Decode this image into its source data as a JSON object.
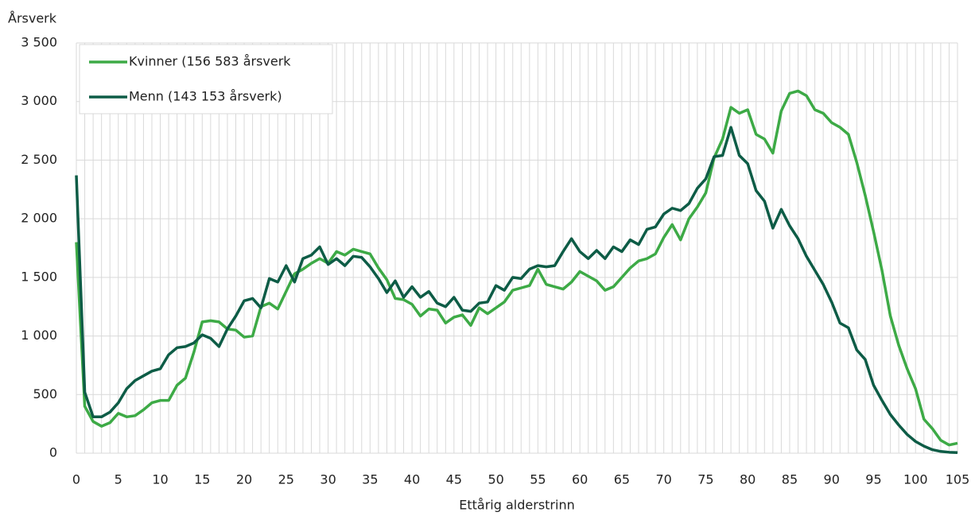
{
  "chart_data": {
    "type": "line",
    "ylabel": "Årsverk",
    "xlabel": "Ettårig alderstrinn",
    "x": [
      0,
      1,
      2,
      3,
      4,
      5,
      6,
      7,
      8,
      9,
      10,
      11,
      12,
      13,
      14,
      15,
      16,
      17,
      18,
      19,
      20,
      21,
      22,
      23,
      24,
      25,
      26,
      27,
      28,
      29,
      30,
      31,
      32,
      33,
      34,
      35,
      36,
      37,
      38,
      39,
      40,
      41,
      42,
      43,
      44,
      45,
      46,
      47,
      48,
      49,
      50,
      51,
      52,
      53,
      54,
      55,
      56,
      57,
      58,
      59,
      60,
      61,
      62,
      63,
      64,
      65,
      66,
      67,
      68,
      69,
      70,
      71,
      72,
      73,
      74,
      75,
      76,
      77,
      78,
      79,
      80,
      81,
      82,
      83,
      84,
      85,
      86,
      87,
      88,
      89,
      90,
      91,
      92,
      93,
      94,
      95,
      96,
      97,
      98,
      99,
      100,
      101,
      102,
      103,
      104,
      105
    ],
    "series": [
      {
        "name": "Kvinner (156 583 årsverk",
        "color": "#3daa46",
        "values": [
          1800,
          400,
          270,
          230,
          260,
          340,
          310,
          320,
          370,
          430,
          450,
          450,
          580,
          640,
          860,
          1120,
          1130,
          1120,
          1060,
          1050,
          990,
          1000,
          1250,
          1280,
          1230,
          1380,
          1530,
          1570,
          1620,
          1660,
          1620,
          1720,
          1690,
          1740,
          1720,
          1700,
          1580,
          1480,
          1320,
          1310,
          1270,
          1170,
          1230,
          1220,
          1110,
          1160,
          1180,
          1090,
          1240,
          1190,
          1240,
          1290,
          1390,
          1410,
          1430,
          1570,
          1440,
          1420,
          1400,
          1460,
          1550,
          1510,
          1470,
          1390,
          1420,
          1500,
          1580,
          1640,
          1660,
          1700,
          1840,
          1950,
          1820,
          2000,
          2100,
          2220,
          2520,
          2680,
          2950,
          2900,
          2930,
          2720,
          2680,
          2560,
          2920,
          3070,
          3090,
          3050,
          2930,
          2900,
          2820,
          2780,
          2720,
          2480,
          2200,
          1890,
          1560,
          1170,
          920,
          720,
          550,
          290,
          210,
          110,
          70,
          85
        ]
      },
      {
        "name": "Menn (143 153 årsverk)",
        "color": "#0d5c46",
        "values": [
          2370,
          520,
          310,
          310,
          350,
          430,
          550,
          620,
          660,
          700,
          720,
          840,
          900,
          910,
          940,
          1010,
          980,
          910,
          1060,
          1170,
          1300,
          1320,
          1240,
          1490,
          1460,
          1600,
          1460,
          1660,
          1690,
          1760,
          1610,
          1660,
          1600,
          1680,
          1670,
          1590,
          1490,
          1370,
          1470,
          1330,
          1420,
          1330,
          1380,
          1280,
          1250,
          1330,
          1220,
          1210,
          1280,
          1290,
          1430,
          1390,
          1500,
          1490,
          1570,
          1600,
          1590,
          1600,
          1720,
          1830,
          1720,
          1660,
          1730,
          1660,
          1760,
          1720,
          1820,
          1780,
          1910,
          1930,
          2040,
          2090,
          2070,
          2130,
          2260,
          2340,
          2530,
          2540,
          2780,
          2540,
          2470,
          2240,
          2150,
          1920,
          2080,
          1940,
          1830,
          1680,
          1560,
          1440,
          1290,
          1110,
          1070,
          880,
          800,
          580,
          450,
          330,
          240,
          160,
          100,
          60,
          30,
          15,
          8,
          5
        ]
      }
    ],
    "xlim": [
      0,
      105
    ],
    "xticks": [
      0,
      5,
      10,
      15,
      20,
      25,
      30,
      35,
      40,
      45,
      50,
      55,
      60,
      65,
      70,
      75,
      80,
      85,
      90,
      95,
      100,
      105
    ],
    "ylim": [
      0,
      3500
    ],
    "yticks": [
      0,
      500,
      {
        "value": 1000,
        "label": "1 000"
      },
      {
        "value": 1500,
        "label": "1 500"
      },
      {
        "value": 2000,
        "label": "2 000"
      },
      {
        "value": 2500,
        "label": "2 500"
      },
      {
        "value": 3000,
        "label": "3 000"
      },
      {
        "value": 3500,
        "label": "3 500"
      }
    ],
    "grid": true,
    "legend": "top-left"
  }
}
